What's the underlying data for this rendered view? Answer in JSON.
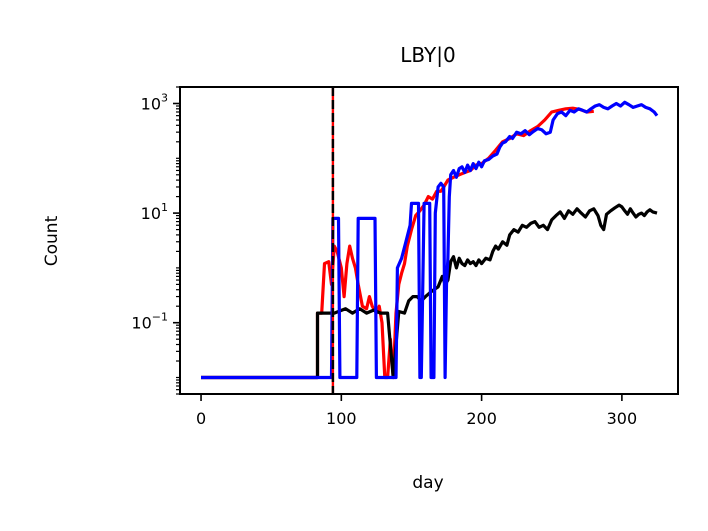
{
  "chart_data": {
    "type": "line",
    "title": "LBY|0",
    "xlabel": "day",
    "ylabel": "Count",
    "xlim": [
      -15,
      340
    ],
    "ylim": [
      0.005,
      2000
    ],
    "yscale": "log",
    "grid": false,
    "x_ticks": [
      0,
      100,
      200,
      300
    ],
    "x_tick_labels": [
      "0",
      "100",
      "200",
      "300"
    ],
    "y_ticks": [
      {
        "value": 0.1,
        "base": "10",
        "exp": "−1"
      },
      {
        "value": 10,
        "base": "10",
        "exp": "1"
      },
      {
        "value": 1000,
        "base": "10",
        "exp": "3"
      }
    ],
    "vline": {
      "x": 94,
      "color": "#000000",
      "overlay_color": "#ff0000",
      "style": "dashed"
    },
    "series": [
      {
        "color": "#ff0000",
        "points": [
          [
            0,
            0.01
          ],
          [
            83,
            0.01
          ],
          [
            83,
            0.15
          ],
          [
            86,
            0.15
          ],
          [
            88,
            1.2
          ],
          [
            91,
            1.3
          ],
          [
            93,
            0.5
          ],
          [
            95,
            2.5
          ],
          [
            97,
            2.0
          ],
          [
            100,
            1.0
          ],
          [
            102,
            0.3
          ],
          [
            104,
            1.2
          ],
          [
            106,
            2.5
          ],
          [
            108,
            1.5
          ],
          [
            110,
            1.0
          ],
          [
            112,
            0.5
          ],
          [
            115,
            0.2
          ],
          [
            118,
            0.18
          ],
          [
            120,
            0.3
          ],
          [
            122,
            0.2
          ],
          [
            125,
            0.15
          ],
          [
            127,
            0.2
          ],
          [
            129,
            0.1
          ],
          [
            131,
            0.01
          ],
          [
            133,
            0.01
          ],
          [
            135,
            0.05
          ],
          [
            137,
            0.01
          ],
          [
            139,
            0.15
          ],
          [
            141,
            0.5
          ],
          [
            143,
            0.8
          ],
          [
            145,
            1.2
          ],
          [
            147,
            2.5
          ],
          [
            150,
            5
          ],
          [
            153,
            9
          ],
          [
            156,
            11
          ],
          [
            159,
            14
          ],
          [
            162,
            20
          ],
          [
            165,
            18
          ],
          [
            168,
            25
          ],
          [
            171,
            25
          ],
          [
            173,
            30
          ],
          [
            176,
            40
          ],
          [
            180,
            45
          ],
          [
            184,
            50
          ],
          [
            188,
            55
          ],
          [
            192,
            60
          ],
          [
            196,
            75
          ],
          [
            200,
            80
          ],
          [
            205,
            100
          ],
          [
            210,
            140
          ],
          [
            215,
            200
          ],
          [
            220,
            230
          ],
          [
            225,
            280
          ],
          [
            230,
            260
          ],
          [
            235,
            320
          ],
          [
            240,
            380
          ],
          [
            245,
            500
          ],
          [
            250,
            700
          ],
          [
            255,
            750
          ],
          [
            260,
            800
          ],
          [
            265,
            820
          ],
          [
            270,
            780
          ],
          [
            275,
            700
          ],
          [
            280,
            720
          ]
        ]
      },
      {
        "color": "#000000",
        "points": [
          [
            0,
            0.01
          ],
          [
            83,
            0.01
          ],
          [
            83,
            0.15
          ],
          [
            95,
            0.15
          ],
          [
            103,
            0.18
          ],
          [
            108,
            0.15
          ],
          [
            113,
            0.18
          ],
          [
            118,
            0.15
          ],
          [
            123,
            0.17
          ],
          [
            128,
            0.15
          ],
          [
            133,
            0.15
          ],
          [
            137,
            0.01
          ],
          [
            141,
            0.16
          ],
          [
            145,
            0.15
          ],
          [
            148,
            0.25
          ],
          [
            151,
            0.3
          ],
          [
            154,
            0.3
          ],
          [
            157,
            0.25
          ],
          [
            160,
            0.3
          ],
          [
            163,
            0.35
          ],
          [
            166,
            0.4
          ],
          [
            169,
            0.45
          ],
          [
            172,
            0.7
          ],
          [
            174,
            0.5
          ],
          [
            176,
            0.6
          ],
          [
            178,
            1.3
          ],
          [
            180,
            1.6
          ],
          [
            182,
            1.0
          ],
          [
            184,
            1.5
          ],
          [
            186,
            1.2
          ],
          [
            188,
            1.1
          ],
          [
            190,
            1.4
          ],
          [
            192,
            1.2
          ],
          [
            194,
            1.3
          ],
          [
            196,
            1.1
          ],
          [
            198,
            1.4
          ],
          [
            200,
            1.2
          ],
          [
            203,
            1.5
          ],
          [
            206,
            1.4
          ],
          [
            208,
            2.0
          ],
          [
            210,
            2.5
          ],
          [
            212,
            2.2
          ],
          [
            215,
            3.0
          ],
          [
            218,
            2.6
          ],
          [
            220,
            4.0
          ],
          [
            223,
            5.0
          ],
          [
            226,
            4.5
          ],
          [
            229,
            6.0
          ],
          [
            232,
            5.5
          ],
          [
            235,
            6.5
          ],
          [
            238,
            7.0
          ],
          [
            241,
            5.5
          ],
          [
            244,
            6.0
          ],
          [
            247,
            5.0
          ],
          [
            250,
            7.5
          ],
          [
            253,
            9.0
          ],
          [
            256,
            10.5
          ],
          [
            259,
            8.0
          ],
          [
            262,
            11.0
          ],
          [
            265,
            9.5
          ],
          [
            268,
            12.0
          ],
          [
            271,
            10.0
          ],
          [
            274,
            8.5
          ],
          [
            277,
            11.0
          ],
          [
            280,
            12.0
          ],
          [
            283,
            9.0
          ],
          [
            285,
            6.0
          ],
          [
            287,
            5.0
          ],
          [
            289,
            9.5
          ],
          [
            292,
            11.0
          ],
          [
            295,
            12.5
          ],
          [
            298,
            14.0
          ],
          [
            300,
            13.0
          ],
          [
            302,
            11.0
          ],
          [
            304,
            9.5
          ],
          [
            306,
            12.0
          ],
          [
            308,
            10.0
          ],
          [
            310,
            8.5
          ],
          [
            312,
            9.5
          ],
          [
            314,
            10.0
          ],
          [
            316,
            9.0
          ],
          [
            318,
            10.5
          ],
          [
            320,
            11.5
          ],
          [
            322,
            10.5
          ],
          [
            325,
            10.0
          ]
        ]
      },
      {
        "color": "#0000ff",
        "points": [
          [
            0,
            0.01
          ],
          [
            93,
            0.01
          ],
          [
            94,
            8
          ],
          [
            98,
            8
          ],
          [
            99,
            0.01
          ],
          [
            111,
            0.01
          ],
          [
            112,
            8
          ],
          [
            124,
            8
          ],
          [
            125,
            0.01
          ],
          [
            139,
            0.01
          ],
          [
            140,
            1.0
          ],
          [
            143,
            1.5
          ],
          [
            146,
            3.0
          ],
          [
            149,
            6.0
          ],
          [
            150,
            15
          ],
          [
            155,
            15
          ],
          [
            156,
            0.01
          ],
          [
            157,
            0.01
          ],
          [
            159,
            15
          ],
          [
            163,
            15
          ],
          [
            164,
            0.01
          ],
          [
            166,
            0.01
          ],
          [
            167,
            10
          ],
          [
            169,
            30
          ],
          [
            171,
            35
          ],
          [
            173,
            30
          ],
          [
            174,
            0.01
          ],
          [
            175,
            0.5
          ],
          [
            176,
            1.5
          ],
          [
            177,
            20
          ],
          [
            178,
            50
          ],
          [
            180,
            60
          ],
          [
            182,
            45
          ],
          [
            184,
            65
          ],
          [
            186,
            70
          ],
          [
            188,
            55
          ],
          [
            190,
            75
          ],
          [
            192,
            60
          ],
          [
            194,
            80
          ],
          [
            196,
            65
          ],
          [
            198,
            85
          ],
          [
            200,
            70
          ],
          [
            202,
            90
          ],
          [
            205,
            95
          ],
          [
            208,
            110
          ],
          [
            211,
            120
          ],
          [
            213,
            160
          ],
          [
            215,
            190
          ],
          [
            217,
            200
          ],
          [
            220,
            250
          ],
          [
            222,
            230
          ],
          [
            225,
            300
          ],
          [
            228,
            280
          ],
          [
            231,
            320
          ],
          [
            234,
            270
          ],
          [
            237,
            310
          ],
          [
            240,
            350
          ],
          [
            243,
            330
          ],
          [
            246,
            280
          ],
          [
            249,
            300
          ],
          [
            251,
            500
          ],
          [
            254,
            650
          ],
          [
            257,
            700
          ],
          [
            260,
            600
          ],
          [
            263,
            750
          ],
          [
            266,
            700
          ],
          [
            269,
            800
          ],
          [
            272,
            750
          ],
          [
            275,
            700
          ],
          [
            278,
            800
          ],
          [
            281,
            900
          ],
          [
            284,
            950
          ],
          [
            287,
            850
          ],
          [
            290,
            800
          ],
          [
            293,
            900
          ],
          [
            296,
            1000
          ],
          [
            299,
            900
          ],
          [
            302,
            1050
          ],
          [
            305,
            950
          ],
          [
            308,
            850
          ],
          [
            311,
            900
          ],
          [
            314,
            950
          ],
          [
            317,
            850
          ],
          [
            320,
            800
          ],
          [
            323,
            700
          ],
          [
            325,
            600
          ]
        ]
      }
    ]
  }
}
